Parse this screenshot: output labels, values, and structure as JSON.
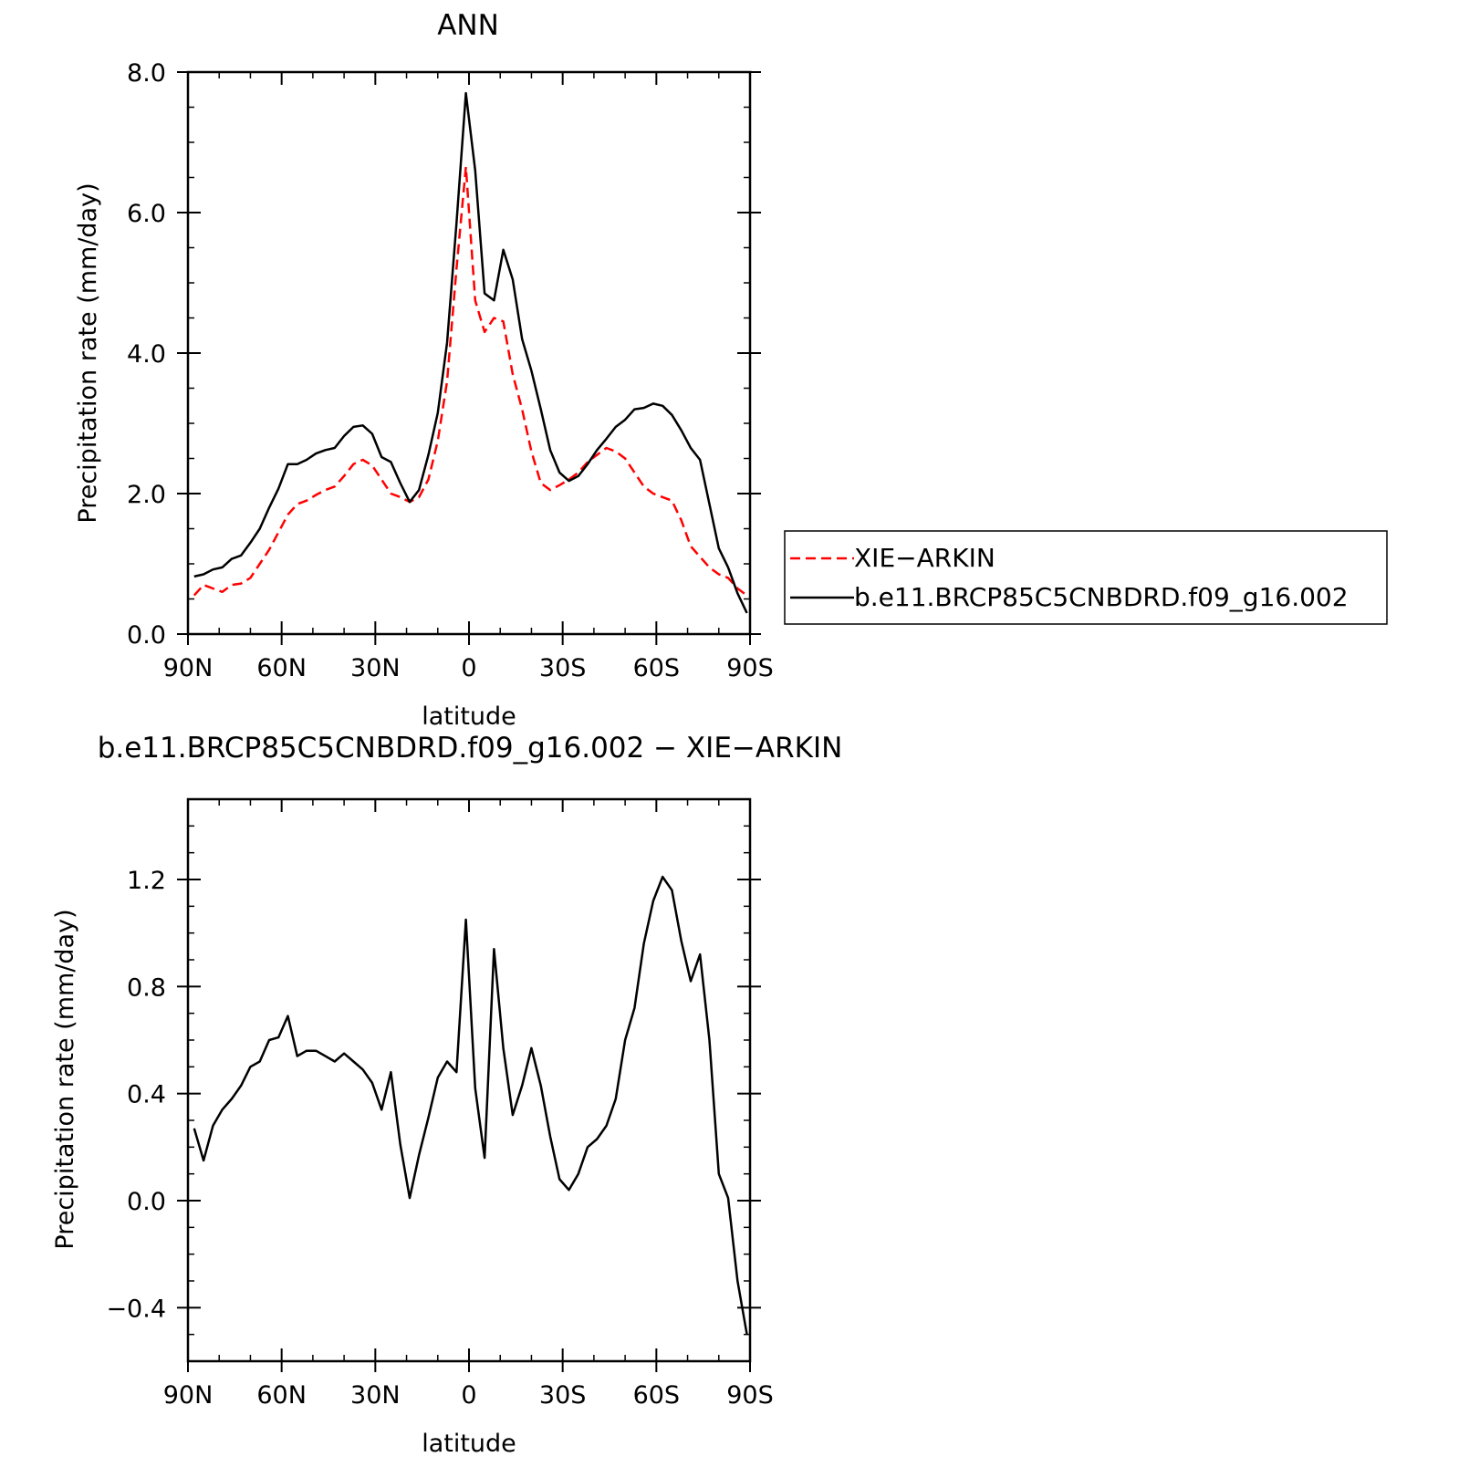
{
  "chart_data": [
    {
      "type": "line",
      "title": "ANN",
      "xlabel": "latitude",
      "ylabel": "Precipitation rate (mm/day)",
      "x_ticks": [
        {
          "value": -90,
          "label": "90N"
        },
        {
          "value": -60,
          "label": "60N"
        },
        {
          "value": -30,
          "label": "30N"
        },
        {
          "value": 0,
          "label": "0"
        },
        {
          "value": 30,
          "label": "30S"
        },
        {
          "value": 60,
          "label": "60S"
        },
        {
          "value": 90,
          "label": "90S"
        }
      ],
      "y_ticks": [
        {
          "value": 0,
          "label": "0.0"
        },
        {
          "value": 2,
          "label": "2.0"
        },
        {
          "value": 4,
          "label": "4.0"
        },
        {
          "value": 6,
          "label": "6.0"
        },
        {
          "value": 8,
          "label": "8.0"
        }
      ],
      "xlim": [
        -90,
        90
      ],
      "ylim": [
        0,
        8
      ],
      "legend_position": "right",
      "series": [
        {
          "name": "XIE-ARKIN",
          "color": "#ff0000",
          "dash": "dashed",
          "x": [
            -88,
            -85,
            -82,
            -79,
            -76,
            -73,
            -70,
            -67,
            -64,
            -61,
            -58,
            -55,
            -52,
            -49,
            -46,
            -43,
            -40,
            -37,
            -34,
            -31,
            -28,
            -25,
            -22,
            -19,
            -16,
            -13,
            -10,
            -7,
            -4,
            -1,
            2,
            5,
            8,
            11,
            14,
            17,
            20,
            23,
            26,
            29,
            32,
            35,
            38,
            41,
            44,
            47,
            50,
            53,
            56,
            59,
            62,
            65,
            68,
            71,
            74,
            77,
            80,
            83,
            86,
            89
          ],
          "y": [
            0.55,
            0.7,
            0.65,
            0.6,
            0.7,
            0.72,
            0.8,
            1.0,
            1.2,
            1.45,
            1.7,
            1.85,
            1.9,
            1.98,
            2.05,
            2.1,
            2.25,
            2.42,
            2.48,
            2.4,
            2.2,
            2.0,
            1.95,
            1.88,
            1.95,
            2.2,
            2.75,
            3.6,
            5.2,
            6.65,
            4.75,
            4.3,
            4.5,
            4.45,
            3.7,
            3.2,
            2.6,
            2.15,
            2.05,
            2.12,
            2.2,
            2.3,
            2.45,
            2.55,
            2.65,
            2.6,
            2.5,
            2.3,
            2.1,
            2.0,
            1.95,
            1.9,
            1.62,
            1.25,
            1.1,
            0.95,
            0.85,
            0.8,
            0.65,
            0.55
          ]
        },
        {
          "name": "b.e11.BRCP85C5CNBDRD.f09_g16.002",
          "color": "#000000",
          "dash": "solid",
          "x": [
            -88,
            -85,
            -82,
            -79,
            -76,
            -73,
            -70,
            -67,
            -64,
            -61,
            -58,
            -55,
            -52,
            -49,
            -46,
            -43,
            -40,
            -37,
            -34,
            -31,
            -28,
            -25,
            -22,
            -19,
            -16,
            -13,
            -10,
            -7,
            -4,
            -1,
            2,
            5,
            8,
            11,
            14,
            17,
            20,
            23,
            26,
            29,
            32,
            35,
            38,
            41,
            44,
            47,
            50,
            53,
            56,
            59,
            62,
            65,
            68,
            71,
            74,
            77,
            80,
            83,
            86,
            89
          ],
          "y": [
            0.82,
            0.85,
            0.92,
            0.95,
            1.07,
            1.12,
            1.3,
            1.5,
            1.8,
            2.07,
            2.42,
            2.42,
            2.48,
            2.57,
            2.62,
            2.65,
            2.82,
            2.95,
            2.97,
            2.85,
            2.52,
            2.45,
            2.15,
            1.88,
            2.05,
            2.55,
            3.15,
            4.15,
            5.85,
            7.7,
            6.6,
            4.85,
            4.75,
            5.47,
            5.05,
            4.2,
            3.75,
            3.2,
            2.62,
            2.3,
            2.18,
            2.25,
            2.42,
            2.62,
            2.78,
            2.95,
            3.05,
            3.2,
            3.22,
            3.28,
            3.25,
            3.12,
            2.9,
            2.65,
            2.48,
            1.85,
            1.22,
            0.95,
            0.58,
            0.3
          ]
        }
      ]
    },
    {
      "type": "line",
      "title": "b.e11.BRCP85C5CNBDRD.f09_g16.002 - XIE-ARKIN",
      "xlabel": "latitude",
      "ylabel": "Precipitation rate (mm/day)",
      "x_ticks": [
        {
          "value": -90,
          "label": "90N"
        },
        {
          "value": -60,
          "label": "60N"
        },
        {
          "value": -30,
          "label": "30N"
        },
        {
          "value": 0,
          "label": "0"
        },
        {
          "value": 30,
          "label": "30S"
        },
        {
          "value": 60,
          "label": "60S"
        },
        {
          "value": 90,
          "label": "90S"
        }
      ],
      "y_ticks": [
        {
          "value": -0.4,
          "label": "-0.4"
        },
        {
          "value": 0,
          "label": "0.0"
        },
        {
          "value": 0.4,
          "label": "0.4"
        },
        {
          "value": 0.8,
          "label": "0.8"
        },
        {
          "value": 1.2,
          "label": "1.2"
        }
      ],
      "xlim": [
        -90,
        90
      ],
      "ylim": [
        -0.6,
        1.5
      ],
      "series": [
        {
          "color": "#000000",
          "dash": "solid",
          "x": [
            -88,
            -85,
            -82,
            -79,
            -76,
            -73,
            -70,
            -67,
            -64,
            -61,
            -58,
            -55,
            -52,
            -49,
            -46,
            -43,
            -40,
            -37,
            -34,
            -31,
            -28,
            -25,
            -22,
            -19,
            -16,
            -13,
            -10,
            -7,
            -4,
            -1,
            2,
            5,
            8,
            11,
            14,
            17,
            20,
            23,
            26,
            29,
            32,
            35,
            38,
            41,
            44,
            47,
            50,
            53,
            56,
            59,
            62,
            65,
            68,
            71,
            74,
            77,
            80,
            83,
            86,
            89
          ],
          "y": [
            0.27,
            0.15,
            0.28,
            0.34,
            0.38,
            0.43,
            0.5,
            0.52,
            0.6,
            0.61,
            0.69,
            0.54,
            0.56,
            0.56,
            0.54,
            0.52,
            0.55,
            0.52,
            0.49,
            0.44,
            0.34,
            0.48,
            0.21,
            0.01,
            0.17,
            0.31,
            0.46,
            0.52,
            0.48,
            1.05,
            0.42,
            0.16,
            0.94,
            0.57,
            0.32,
            0.43,
            0.57,
            0.43,
            0.24,
            0.08,
            0.04,
            0.1,
            0.2,
            0.23,
            0.28,
            0.38,
            0.6,
            0.72,
            0.96,
            1.12,
            1.21,
            1.16,
            0.97,
            0.82,
            0.92,
            0.6,
            0.1,
            0.01,
            -0.3,
            -0.5
          ]
        }
      ]
    }
  ]
}
